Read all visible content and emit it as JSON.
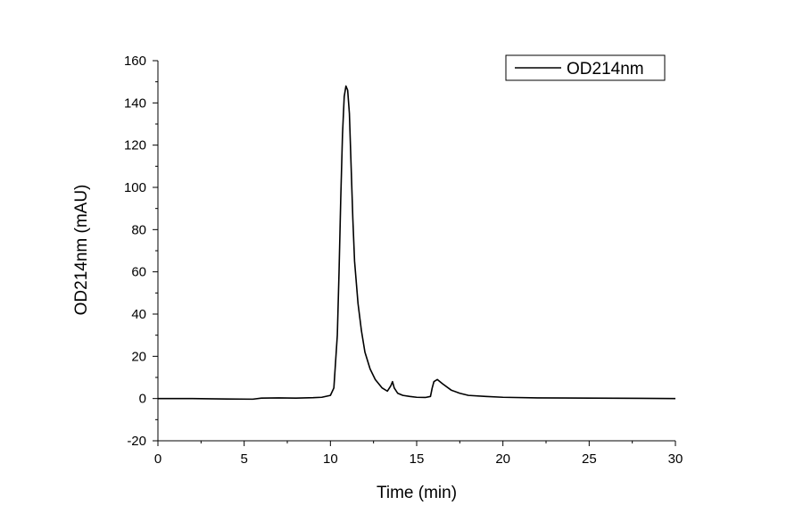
{
  "chart_data": {
    "type": "line",
    "title": "",
    "xlabel": "Time (min)",
    "ylabel": "OD214nm (mAU)",
    "xlim": [
      0,
      30
    ],
    "ylim": [
      -20,
      160
    ],
    "xticks": [
      0,
      5,
      10,
      15,
      20,
      25,
      30
    ],
    "xtick_labels": [
      "0",
      "5",
      "10",
      "15",
      "20",
      "25",
      "30"
    ],
    "yticks": [
      -20,
      0,
      20,
      40,
      60,
      80,
      100,
      120,
      140,
      160
    ],
    "ytick_labels": [
      "-20",
      "0",
      "20",
      "40",
      "60",
      "80",
      "100",
      "120",
      "140",
      "160"
    ],
    "grid": false,
    "legend_position": "top-right",
    "line_color": "#000000",
    "series": [
      {
        "name": "OD214nm",
        "x": [
          0,
          2,
          4,
          5.5,
          6,
          7,
          8,
          9,
          9.5,
          10,
          10.2,
          10.4,
          10.5,
          10.6,
          10.7,
          10.8,
          10.9,
          11.0,
          11.1,
          11.2,
          11.3,
          11.4,
          11.6,
          11.8,
          12.0,
          12.3,
          12.6,
          13.0,
          13.3,
          13.5,
          13.6,
          13.7,
          13.9,
          14.2,
          14.6,
          15.0,
          15.5,
          15.8,
          15.9,
          16.0,
          16.2,
          16.5,
          17.0,
          17.5,
          18.0,
          19.0,
          20.0,
          22.0,
          25.0,
          28.0,
          30.0
        ],
        "y": [
          0,
          0,
          -0.2,
          -0.3,
          0.2,
          0.3,
          0.2,
          0.4,
          0.6,
          1.5,
          5,
          30,
          60,
          95,
          125,
          143,
          148,
          146,
          135,
          110,
          85,
          65,
          45,
          32,
          22,
          14,
          9,
          5,
          3.5,
          6,
          8,
          5,
          2.5,
          1.5,
          1,
          0.6,
          0.5,
          1,
          5,
          8,
          9,
          7,
          4,
          2.5,
          1.5,
          1,
          0.6,
          0.3,
          0.2,
          0.1,
          0
        ]
      }
    ]
  }
}
